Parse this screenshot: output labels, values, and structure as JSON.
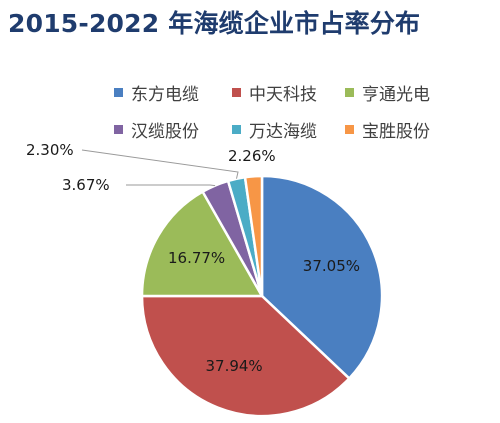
{
  "chart_data": {
    "type": "pie",
    "title": "2015-2022 年海缆企业市占率分布",
    "categories": [
      "东方电缆",
      "中天科技",
      "亨通光电",
      "汉缆股份",
      "万达海缆",
      "宝胜股份"
    ],
    "values": [
      37.05,
      37.94,
      16.77,
      3.67,
      2.3,
      2.26
    ],
    "data_labels": [
      "37.05%",
      "37.94%",
      "16.77%",
      "3.67%",
      "2.30%",
      "2.26%"
    ],
    "colors": [
      "#4a7fc1",
      "#c0504d",
      "#9bbb59",
      "#8064a2",
      "#4bacc6",
      "#f79646"
    ],
    "legend_position": "top-right",
    "start_angle": "top",
    "direction": "clockwise"
  }
}
